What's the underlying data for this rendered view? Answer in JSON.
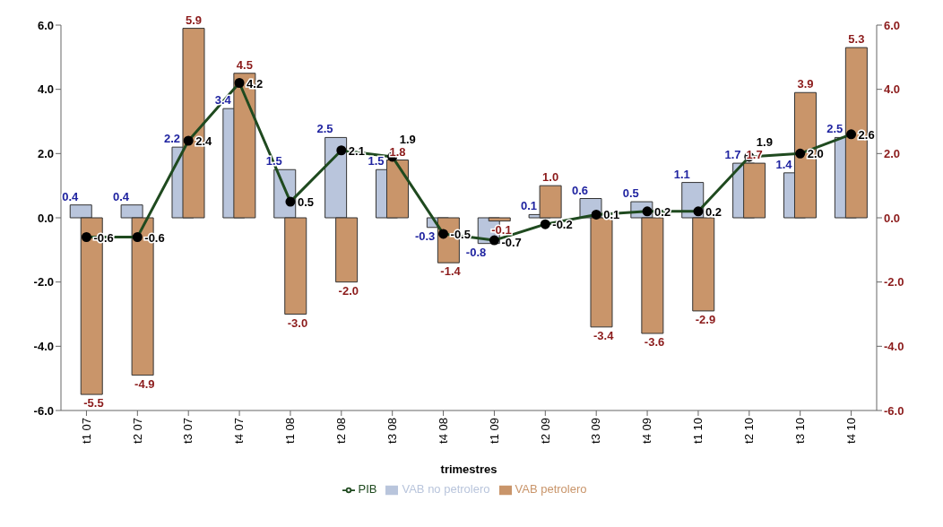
{
  "chart_data": {
    "type": "bar",
    "xlabel": "trimestres",
    "categories": [
      "t1 07",
      "t2 07",
      "t3 07",
      "t4 07",
      "t1 08",
      "t2 08",
      "t3 08",
      "t4 08",
      "t1 09",
      "t2 09",
      "t3 09",
      "t4 09",
      "t1 10",
      "t2 10",
      "t3 10",
      "t4 10"
    ],
    "series": [
      {
        "name": "VAB no petrolero",
        "color": "#b9c5dc",
        "values": [
          0.4,
          0.4,
          2.2,
          3.4,
          1.5,
          2.5,
          1.5,
          -0.3,
          -0.8,
          0.1,
          0.6,
          0.5,
          1.1,
          1.7,
          1.4,
          2.5
        ],
        "value_labels": [
          "0.4",
          "0.4",
          "2.2",
          "3.4",
          "1.5",
          "2.5",
          "1.5",
          "-0.3",
          "-0.8",
          "0.1",
          "0.6",
          "0.5",
          "1.1",
          "1.7",
          "1.4",
          "2.5"
        ]
      },
      {
        "name": "VAB petrolero",
        "color": "#c9956a",
        "values": [
          -5.5,
          -4.9,
          5.9,
          4.5,
          -3.0,
          -2.0,
          1.8,
          -1.4,
          -0.1,
          1.0,
          -3.4,
          -3.6,
          -2.9,
          1.7,
          3.9,
          5.3
        ],
        "value_labels": [
          "-5.5",
          "-4.9",
          "5.9",
          "4.5",
          "-3.0",
          "-2.0",
          "1.8",
          "-1.4",
          "-0.1",
          "1.0",
          "-3.4",
          "-3.6",
          "-2.9",
          "1.7",
          "3.9",
          "5.3"
        ]
      },
      {
        "name": "PIB",
        "type": "line",
        "color": "#1f4a1f",
        "marker": "circle",
        "values": [
          -0.6,
          -0.6,
          2.4,
          4.2,
          0.5,
          2.1,
          1.9,
          -0.5,
          -0.7,
          -0.2,
          0.1,
          0.2,
          0.2,
          1.9,
          2.0,
          2.6
        ],
        "value_labels": [
          "-0.6",
          "-0.6",
          "2.4",
          "4.2",
          "0.5",
          "2.1",
          "1.9",
          "-0.5",
          "-0.7",
          "-0.2",
          "0.1",
          "0.2",
          "0.2",
          "1.9",
          "2.0",
          "2.6"
        ]
      }
    ],
    "ylim": [
      -6,
      6
    ],
    "yticks": [
      {
        "value": -6,
        "label": "-6.0"
      },
      {
        "value": -4,
        "label": "-4.0"
      },
      {
        "value": -2,
        "label": "-2.0"
      },
      {
        "value": 0,
        "label": "0.0"
      },
      {
        "value": 2,
        "label": "2.0"
      },
      {
        "value": 4,
        "label": "4.0"
      },
      {
        "value": 6,
        "label": "6.0"
      }
    ],
    "y2lim": [
      -6,
      6
    ],
    "y2ticks": [
      {
        "value": -6,
        "label": "-6.0"
      },
      {
        "value": -4,
        "label": "-4.0"
      },
      {
        "value": -2,
        "label": "-2.0"
      },
      {
        "value": 0,
        "label": "0.0"
      },
      {
        "value": 2,
        "label": "2.0"
      },
      {
        "value": 4,
        "label": "4.0"
      },
      {
        "value": 6,
        "label": "6.0"
      }
    ],
    "grid": false,
    "legend": "bottom"
  }
}
